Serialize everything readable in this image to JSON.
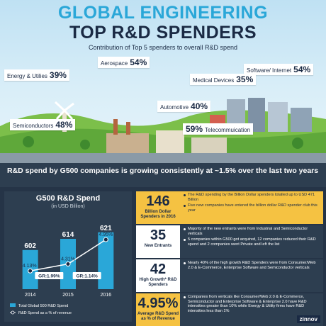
{
  "header": {
    "title_line1": "GLOBAL ENGINEERING",
    "title_line2": "TOP R&D SPENDERS",
    "subtitle": "Contribution of  Top 5 spenders to overall R&D spend"
  },
  "sectors": [
    {
      "name": "Energy & Utilies",
      "pct": "39%"
    },
    {
      "name": "Aerospace",
      "pct": "54%"
    },
    {
      "name": "Software/ Internet",
      "pct": "54%"
    },
    {
      "name": "Medical Devices",
      "pct": "35%"
    },
    {
      "name": "Automotive",
      "pct": "40%"
    },
    {
      "name": "Semiconductors",
      "pct": "48%"
    },
    {
      "name": "Telecommuication",
      "pct": "59%"
    }
  ],
  "band": {
    "text": "R&D spend by G500 companies is growing consistently at ~1.5% over the last two years"
  },
  "chart_data": {
    "type": "bar",
    "title": "G500 R&D Spend",
    "subtitle": "(in USD Billion)",
    "categories": [
      "2014",
      "2015",
      "2016"
    ],
    "values": [
      602,
      614,
      621
    ],
    "value_labels": [
      "602",
      "614",
      "621"
    ],
    "pct_revenue": [
      4.13,
      4.31,
      4.95
    ],
    "pct_labels": [
      "4.13%",
      "4.31%",
      "4.95%"
    ],
    "growth_labels": [
      "GR:1.99%",
      "GR:1.14%"
    ],
    "legend": [
      "Total Global 500 R&D Spend",
      "R&D Spend as a % of revenue"
    ],
    "colors": {
      "bar": "#2aa7d8",
      "line": "#ffffff",
      "panel": "#2d3e50"
    }
  },
  "stats": [
    {
      "number": "146",
      "caption": "Billion Dollar Spenders in 2016",
      "bullets": [
        "The R&D spending by the Billion Dollar spenders totalled up to USD 471 Billion",
        "Five new companies have entered the billion dollar R&D spender club this year"
      ]
    },
    {
      "number": "35",
      "caption": "New Entrants",
      "bullets": [
        "Majority of the new entrants were from Industrial and Semiconductor verticals",
        "5 companies within G500 got acquired, 12 companies reduced their R&D spend and 2 companies went Private and left the list"
      ]
    },
    {
      "number": "42",
      "caption": "High Growth* R&D Spenders",
      "bullets": [
        "Nearly 40% of the high growth R&D Spenders were from Consumer/Web 2.0 & E-Commerce, Enterprise Software and Semiconductor verticals"
      ]
    },
    {
      "number": "4.95%",
      "caption": "Average R&D Spend as % of Revenue",
      "bullets": [
        "Companies from verticals like Consumer/Web 2.0 & E-Commerce, Semiconductor and Enterprise Software & Enterprise 2.0 have R&D intensities greater than 10% while Energy & Utility firms have R&D intensities less than 1%"
      ]
    }
  ],
  "brand": {
    "logo_text": "zinnov"
  }
}
